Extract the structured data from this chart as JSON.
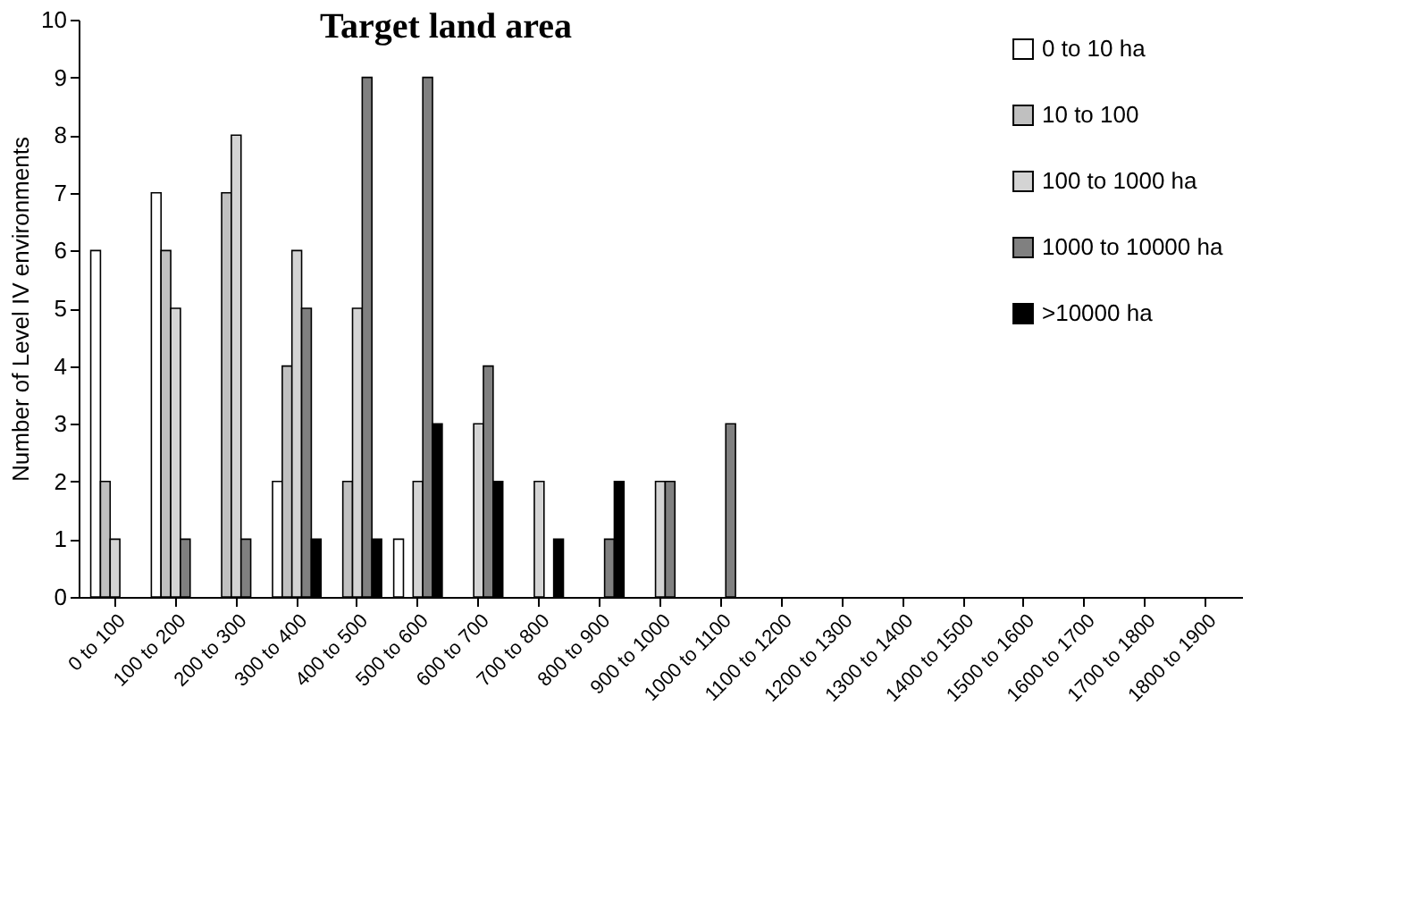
{
  "chart_data": {
    "type": "bar",
    "title": "Target land area",
    "ylabel": "Number of Level IV environments",
    "categories": [
      "0 to 100",
      "100 to 200",
      "200 to 300",
      "300 to 400",
      "400 to 500",
      "500 to 600",
      "600 to 700",
      "700 to 800",
      "800 to 900",
      "900 to 1000",
      "1000 to 1100",
      "1100 to 1200",
      "1200 to 1300",
      "1300 to 1400",
      "1400 to 1500",
      "1500 to 1600",
      "1600 to 1700",
      "1700 to 1800",
      "1800 to 1900"
    ],
    "series": [
      {
        "name": "0 to 10 ha",
        "color": "#ffffff",
        "values": [
          6,
          7,
          0,
          2,
          0,
          1,
          0,
          0,
          0,
          0,
          0,
          0,
          0,
          0,
          0,
          0,
          0,
          0,
          0
        ]
      },
      {
        "name": "10 to 100",
        "color": "#c0c0c0",
        "values": [
          2,
          6,
          7,
          4,
          2,
          0,
          0,
          0,
          0,
          0,
          0,
          0,
          0,
          0,
          0,
          0,
          0,
          0,
          0
        ]
      },
      {
        "name": "100 to 1000 ha",
        "color": "#d4d4d4",
        "values": [
          1,
          5,
          8,
          6,
          5,
          2,
          3,
          2,
          0,
          2,
          0,
          0,
          0,
          0,
          0,
          0,
          0,
          0,
          0
        ]
      },
      {
        "name": "1000 to 10000 ha",
        "color": "#808080",
        "values": [
          0,
          1,
          1,
          5,
          9,
          9,
          4,
          0,
          1,
          2,
          3,
          0,
          0,
          0,
          0,
          0,
          0,
          0,
          0
        ]
      },
      {
        "name": ">10000 ha",
        "color": "#000000",
        "values": [
          0,
          0,
          0,
          1,
          1,
          3,
          2,
          1,
          2,
          0,
          0,
          0,
          0,
          0,
          0,
          0,
          0,
          0,
          0
        ]
      }
    ],
    "ylim": [
      0,
      10
    ],
    "yticks": [
      0,
      1,
      2,
      3,
      4,
      5,
      6,
      7,
      8,
      9,
      10
    ],
    "grid": false,
    "legend": "top right"
  }
}
